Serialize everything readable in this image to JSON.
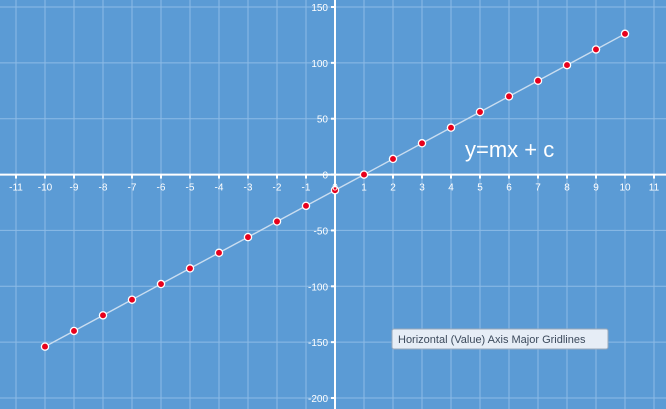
{
  "chart_data": {
    "type": "scatter",
    "title": "",
    "xlabel": "",
    "ylabel": "",
    "xlim": [
      -11,
      11
    ],
    "ylim": [
      -200,
      150
    ],
    "x_ticks": [
      -11,
      -10,
      -9,
      -8,
      -7,
      -6,
      -5,
      -4,
      -3,
      -2,
      -1,
      0,
      1,
      2,
      3,
      4,
      5,
      6,
      7,
      8,
      9,
      10,
      11
    ],
    "y_ticks": [
      -200,
      -150,
      -100,
      -50,
      0,
      50,
      100,
      150
    ],
    "grid": true,
    "series": [
      {
        "x": [
          -10,
          -9,
          -8,
          -7,
          -6,
          -5,
          -4,
          -3,
          -2,
          -1,
          0,
          1,
          2,
          3,
          4,
          5,
          6,
          7,
          8,
          9,
          10
        ],
        "y": [
          -154,
          -140,
          -126,
          -112,
          -98,
          -84,
          -70,
          -56,
          -42,
          -28,
          -14,
          0,
          14,
          28,
          42,
          56,
          70,
          84,
          98,
          112,
          126
        ],
        "color": "#e8001c",
        "line_color": "#c9ddf0"
      }
    ],
    "annotations": [
      "y=mx + c"
    ],
    "tooltip": "Horizontal (Value) Axis Major Gridlines"
  },
  "colors": {
    "background": "#5b9bd5",
    "gridline": "#8dbbe6",
    "axis": "#ffffff",
    "marker": "#e8001c"
  }
}
